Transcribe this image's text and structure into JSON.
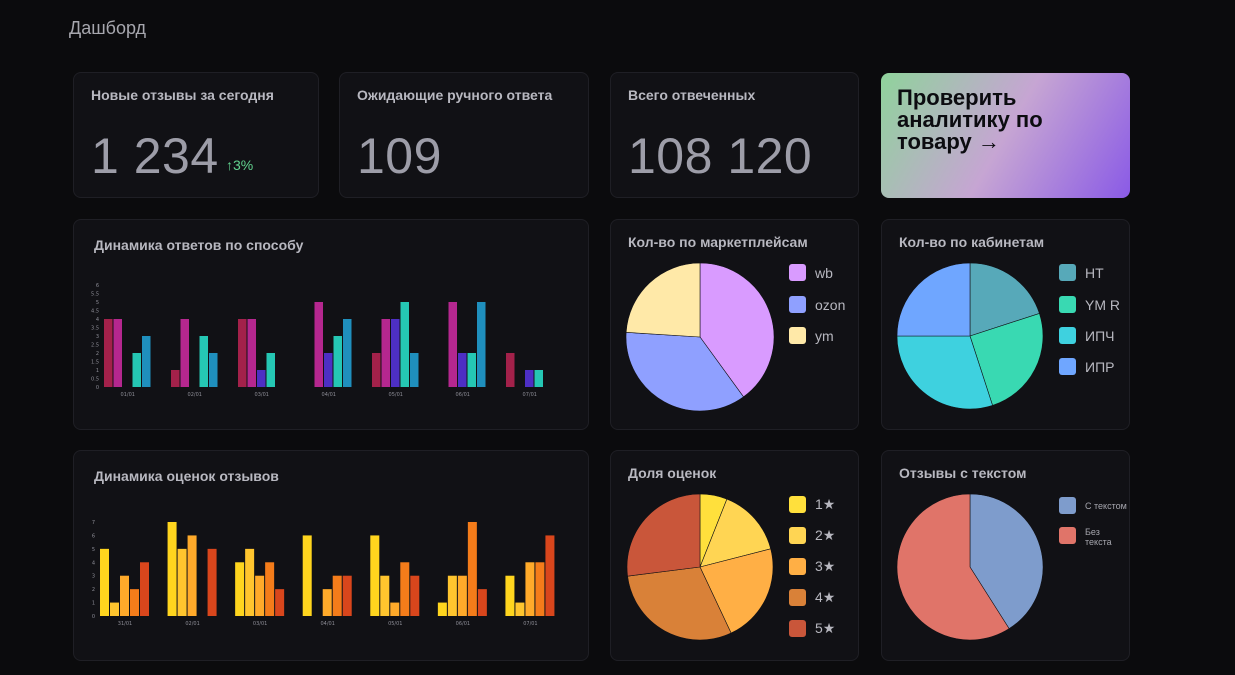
{
  "page_title": "Дашборд",
  "stats": {
    "new_today": {
      "label": "Новые отзывы за сегодня",
      "value": "1 234",
      "trend": "↑3%"
    },
    "awaiting": {
      "label": "Ожидающие ручного ответа",
      "value": "109"
    },
    "total": {
      "label": "Всего отвеченных",
      "value": "108 120"
    }
  },
  "promo": {
    "label": "Проверить аналитику по товару →"
  },
  "charts": {
    "answers_dynamics": {
      "title": "Динамика ответов по способу"
    },
    "marketplaces": {
      "title": "Кол-во по маркетплейсам",
      "legend": [
        "wb",
        "ozon",
        "ym"
      ]
    },
    "cabinets": {
      "title": "Кол-во по кабинетам",
      "legend": [
        "НТ",
        "YM R",
        "ИПЧ",
        "ИПР"
      ]
    },
    "ratings_dynamics": {
      "title": "Динамика оценок отзывов"
    },
    "ratings_share": {
      "title": "Доля оценок",
      "legend": [
        "1★",
        "2★",
        "3★",
        "4★",
        "5★"
      ]
    },
    "with_text": {
      "title": "Отзывы с текстом",
      "legend": [
        "С текстом",
        "Без текста"
      ]
    }
  },
  "chart_data": [
    {
      "type": "bar",
      "title": "Динамика ответов по способу",
      "categories": [
        "01/01",
        "02/01",
        "03/01",
        "04/01",
        "05/01",
        "06/01",
        "07/01"
      ],
      "yticks": [
        "0",
        "0.5",
        "1",
        "1.5",
        "2",
        "2.5",
        "3",
        "3.5",
        "4",
        "4.5",
        "5",
        "5.5",
        "6"
      ],
      "ylim": [
        0,
        6
      ],
      "colors": [
        "#a3214a",
        "#b5278f",
        "#4d2fc4",
        "#25c7b4",
        "#1f8fbd"
      ],
      "series": [
        {
          "values": [
            4,
            1,
            4,
            0,
            2,
            0,
            2
          ]
        },
        {
          "values": [
            4,
            4,
            4,
            5,
            4,
            5,
            0
          ]
        },
        {
          "values": [
            0,
            0,
            1,
            2,
            4,
            2,
            1
          ]
        },
        {
          "values": [
            2,
            3,
            2,
            3,
            5,
            2,
            1
          ]
        },
        {
          "values": [
            3,
            2,
            0,
            4,
            2,
            5,
            0
          ]
        }
      ]
    },
    {
      "type": "pie",
      "title": "Кол-во по маркетплейсам",
      "labels": [
        "wb",
        "ozon",
        "ym"
      ],
      "values": [
        40,
        36,
        24
      ],
      "colors": [
        "#d99bff",
        "#8fa0ff",
        "#ffe9a8"
      ]
    },
    {
      "type": "pie",
      "title": "Кол-во по кабинетам",
      "labels": [
        "НТ",
        "YM R",
        "ИПЧ",
        "ИПР"
      ],
      "values": [
        20,
        25,
        30,
        25
      ],
      "colors": [
        "#57a9b9",
        "#39d9b2",
        "#3ed1df",
        "#6fa6ff"
      ]
    },
    {
      "type": "bar",
      "title": "Динамика оценок отзывов",
      "categories": [
        "31/01",
        "02/01",
        "03/01",
        "04/01",
        "05/01",
        "06/01",
        "07/01"
      ],
      "yticks": [
        "0",
        "1",
        "2",
        "3",
        "4",
        "5",
        "6",
        "7"
      ],
      "ylim": [
        0,
        7
      ],
      "colors": [
        "#ffd51e",
        "#ffc52e",
        "#ffaa2a",
        "#f47c1a",
        "#d9461c"
      ],
      "series": [
        {
          "values": [
            5,
            7,
            4,
            6,
            6,
            1,
            3
          ]
        },
        {
          "values": [
            1,
            5,
            5,
            0,
            3,
            3,
            1
          ]
        },
        {
          "values": [
            3,
            6,
            3,
            2,
            1,
            3,
            4
          ]
        },
        {
          "values": [
            2,
            0,
            4,
            3,
            4,
            7,
            4
          ]
        },
        {
          "values": [
            4,
            5,
            2,
            3,
            3,
            2,
            6
          ]
        }
      ]
    },
    {
      "type": "pie",
      "title": "Доля оценок",
      "labels": [
        "1★",
        "2★",
        "3★",
        "4★",
        "5★"
      ],
      "values": [
        6,
        15,
        22,
        30,
        27
      ],
      "colors": [
        "#ffe03c",
        "#ffd553",
        "#ffaf45",
        "#d98138",
        "#c9563a"
      ]
    },
    {
      "type": "pie",
      "title": "Отзывы с текстом",
      "labels": [
        "С текстом",
        "Без текста"
      ],
      "values": [
        41,
        59
      ],
      "colors": [
        "#7e9ccc",
        "#e07469"
      ]
    }
  ]
}
